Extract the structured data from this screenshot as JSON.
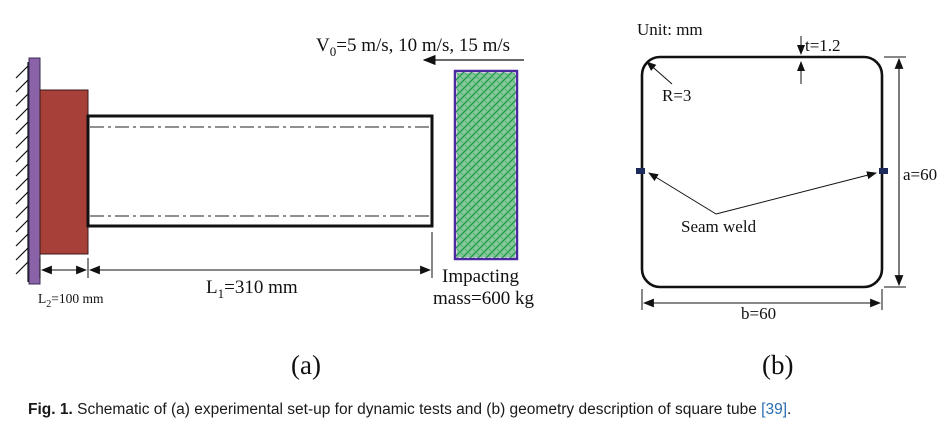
{
  "panel_a": {
    "velocity_label": "V₀=5 m/s, 10 m/s, 15 m/s",
    "velocity_prefix": "V",
    "velocity_sub": "0",
    "velocity_rest": "=5 m/s, 10 m/s, 15 m/s",
    "l2_prefix": "L",
    "l2_sub": "2",
    "l2_rest": "=100 mm",
    "l1_prefix": "L",
    "l1_sub": "1",
    "l1_rest": "=310 mm",
    "mass_line1": "Impacting",
    "mass_line2": "mass=600 kg",
    "label": "(a)"
  },
  "panel_b": {
    "unit": "Unit: mm",
    "thickness": "t=1.2",
    "radius": "R=3",
    "side_a": "a=60",
    "side_b": "b=60",
    "seam_weld": "Seam weld",
    "label": "(b)"
  },
  "caption": {
    "fig_label": "Fig. 1.",
    "text": " Schematic of (a) experimental set-up for dynamic tests and (b) geometry description of square tube ",
    "ref": "[39]",
    "end": "."
  },
  "colors": {
    "wall_plate": "#8a62a8",
    "clamp_block": "#a8403a",
    "mass_fill": "#1f9a4a",
    "mass_border": "#4b2aa0",
    "weld_marker": "#1c2a5c"
  }
}
